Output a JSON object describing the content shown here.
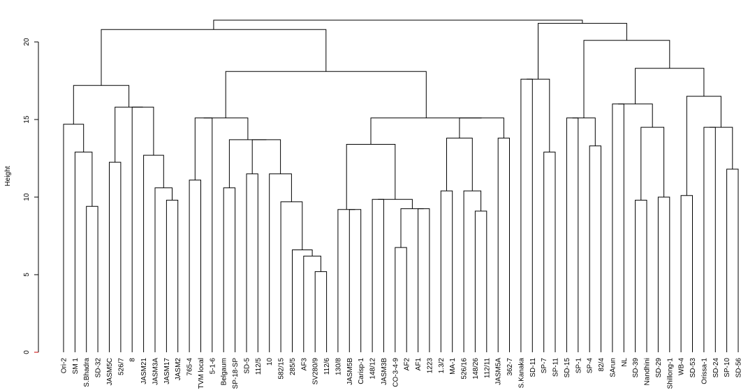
{
  "chart_data": {
    "type": "dendrogram",
    "ylabel": "Height",
    "ylim": [
      0,
      22
    ],
    "yticks": [
      "0",
      "5",
      "10",
      "15",
      "20"
    ],
    "leaves": [
      "Ori-2",
      "SM 1",
      "S.Bhadra",
      "SD-32",
      "JASM5C",
      "526/7",
      "8",
      "JASM21",
      "JASM3A",
      "JASM17",
      "JASM2",
      "765-4",
      "TVM local",
      "5-1-6",
      "Belgaum",
      "SP-18-SP",
      "SD-5",
      "112/5",
      "10",
      "582/15",
      "285/5",
      "AF3",
      "SV280/9",
      "112/6",
      "130/8",
      "JASM5B",
      "Carisp-1",
      "148/12",
      "JASM3B",
      "CO-3-4-9",
      "AF2",
      "AF1",
      "1223",
      "1.3/2",
      "MA-1",
      "526/16",
      "148/26",
      "112/11",
      "JASM5A",
      "362-7",
      "S.Kanaka",
      "SD-11",
      "SP-7",
      "SP-11",
      "SD-15",
      "SP-1",
      "SP-4",
      "82/4",
      "SArun",
      "NL",
      "SD-39",
      "Nandhini",
      "SD-29",
      "Shillong-1",
      "WB-4",
      "SD-53",
      "Orissa-1",
      "SD-24",
      "SP-10",
      "SD-56"
    ],
    "merges": [
      {
        "id": "A1",
        "children": [
          "SD-32",
          "S.Bhadra"
        ],
        "height": 9.4
      },
      {
        "id": "A2",
        "children": [
          "A1",
          "SM 1"
        ],
        "height": 12.9
      },
      {
        "id": "A3",
        "children": [
          "A2",
          "Ori-2"
        ],
        "height": 14.7
      },
      {
        "id": "A4",
        "children": [
          "JASM5C",
          "526/7"
        ],
        "height": 12.25
      },
      {
        "id": "A5",
        "children": [
          "JASM17",
          "JASM2"
        ],
        "height": 9.8
      },
      {
        "id": "A6",
        "children": [
          "A5",
          "JASM3A"
        ],
        "height": 10.6
      },
      {
        "id": "A7",
        "children": [
          "A6",
          "JASM21"
        ],
        "height": 12.7
      },
      {
        "id": "A8",
        "children": [
          "A7",
          "8"
        ],
        "height": 15.8
      },
      {
        "id": "A9",
        "children": [
          "A4",
          "A8"
        ],
        "height": 15.8
      },
      {
        "id": "A10",
        "children": [
          "A3",
          "A9"
        ],
        "height": 17.2
      },
      {
        "id": "B1",
        "children": [
          "765-4",
          "TVM local"
        ],
        "height": 11.1
      },
      {
        "id": "B2",
        "children": [
          "B1",
          "5-1-6"
        ],
        "height": 15.1
      },
      {
        "id": "B3",
        "children": [
          "Belgaum",
          "SP-18-SP"
        ],
        "height": 10.6
      },
      {
        "id": "B4",
        "children": [
          "SV280/9",
          "112/6"
        ],
        "height": 5.2
      },
      {
        "id": "B5",
        "children": [
          "B4",
          "AF3"
        ],
        "height": 6.2
      },
      {
        "id": "B6",
        "children": [
          "B5",
          "285/5"
        ],
        "height": 6.6
      },
      {
        "id": "B7",
        "children": [
          "B6",
          "582/15"
        ],
        "height": 9.7
      },
      {
        "id": "B8",
        "children": [
          "B7",
          "10"
        ],
        "height": 11.5
      },
      {
        "id": "B9",
        "children": [
          "SD-5",
          "112/5"
        ],
        "height": 11.5
      },
      {
        "id": "B10",
        "children": [
          "B9",
          "B8"
        ],
        "height": 13.7
      },
      {
        "id": "B11",
        "children": [
          "B3",
          "B10"
        ],
        "height": 13.7
      },
      {
        "id": "B12",
        "children": [
          "B2",
          "B11"
        ],
        "height": 15.1
      },
      {
        "id": "C1",
        "children": [
          "JASM5B",
          "Carisp-1"
        ],
        "height": 9.2
      },
      {
        "id": "C2",
        "children": [
          "C1",
          "130/8"
        ],
        "height": 9.2
      },
      {
        "id": "C3",
        "children": [
          "148/12",
          "JASM3B"
        ],
        "height": 9.85
      },
      {
        "id": "C4",
        "children": [
          "CO-3-4-9",
          "AF2"
        ],
        "height": 6.75
      },
      {
        "id": "C5",
        "children": [
          "AF1",
          "1223"
        ],
        "height": 9.25
      },
      {
        "id": "C6",
        "children": [
          "C4",
          "C5"
        ],
        "height": 9.25
      },
      {
        "id": "C7",
        "children": [
          "C3",
          "C6"
        ],
        "height": 9.85
      },
      {
        "id": "C8",
        "children": [
          "C2",
          "C7"
        ],
        "height": 13.4
      },
      {
        "id": "C9",
        "children": [
          "1.3/2",
          "MA-1"
        ],
        "height": 10.4
      },
      {
        "id": "C10",
        "children": [
          "148/26",
          "112/11"
        ],
        "height": 9.1
      },
      {
        "id": "C11",
        "children": [
          "C10",
          "526/16"
        ],
        "height": 10.4
      },
      {
        "id": "C12",
        "children": [
          "C9",
          "C11"
        ],
        "height": 13.8
      },
      {
        "id": "C13",
        "children": [
          "JASM5A",
          "362-7"
        ],
        "height": 13.8
      },
      {
        "id": "C14",
        "children": [
          "C12",
          "C13"
        ],
        "height": 15.1
      },
      {
        "id": "C15",
        "children": [
          "C8",
          "C14"
        ],
        "height": 15.1
      },
      {
        "id": "BC",
        "children": [
          "B12",
          "C15"
        ],
        "height": 18.1
      },
      {
        "id": "L",
        "children": [
          "A10",
          "BC"
        ],
        "height": 20.8
      },
      {
        "id": "D1",
        "children": [
          "S.Kanaka",
          "SD-11"
        ],
        "height": 17.6
      },
      {
        "id": "D2",
        "children": [
          "SP-7",
          "SP-11"
        ],
        "height": 12.9
      },
      {
        "id": "D3",
        "children": [
          "D1",
          "D2"
        ],
        "height": 17.6
      },
      {
        "id": "D4",
        "children": [
          "SD-15",
          "SP-1"
        ],
        "height": 15.1
      },
      {
        "id": "D5",
        "children": [
          "SP-4",
          "82/4"
        ],
        "height": 13.3
      },
      {
        "id": "D6",
        "children": [
          "D4",
          "D5"
        ],
        "height": 15.1
      },
      {
        "id": "D7",
        "children": [
          "SArun",
          "NL"
        ],
        "height": 16.0
      },
      {
        "id": "D8",
        "children": [
          "SD-39",
          "Nandhini"
        ],
        "height": 9.8
      },
      {
        "id": "D9",
        "children": [
          "SD-29",
          "Shillong-1"
        ],
        "height": 10.0
      },
      {
        "id": "D10",
        "children": [
          "D8",
          "D9"
        ],
        "height": 14.5
      },
      {
        "id": "D11",
        "children": [
          "D7",
          "D10"
        ],
        "height": 16.0
      },
      {
        "id": "D12",
        "children": [
          "WB-4",
          "SD-53"
        ],
        "height": 10.1
      },
      {
        "id": "D13",
        "children": [
          "Orissa-1",
          "SD-24"
        ],
        "height": 14.5
      },
      {
        "id": "D14",
        "children": [
          "SP-10",
          "SD-56"
        ],
        "height": 11.8
      },
      {
        "id": "D15",
        "children": [
          "D13",
          "D14"
        ],
        "height": 14.5
      },
      {
        "id": "D16",
        "children": [
          "D12",
          "D15"
        ],
        "height": 16.5
      },
      {
        "id": "D17",
        "children": [
          "D11",
          "D16"
        ],
        "height": 18.3
      },
      {
        "id": "D18",
        "children": [
          "D6",
          "D17"
        ],
        "height": 20.1
      },
      {
        "id": "D19",
        "children": [
          "D3",
          "D18"
        ],
        "height": 21.2
      },
      {
        "id": "ROOT",
        "children": [
          "L",
          "D19"
        ],
        "height": 21.4
      }
    ]
  }
}
